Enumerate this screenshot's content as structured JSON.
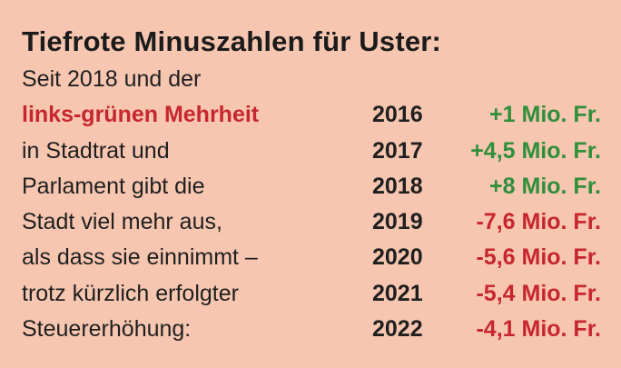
{
  "title": "Tiefrote Minuszahlen für Uster:",
  "rows": [
    {
      "text": "Seit 2018 und der",
      "year": "",
      "amount": ""
    },
    {
      "text": "links-grünen Mehrheit",
      "year": "2016",
      "amount": "+1 Mio. Fr."
    },
    {
      "text": "in Stadtrat und",
      "year": "2017",
      "amount": "+4,5 Mio. Fr."
    },
    {
      "text": "Parlament gibt die",
      "year": "2018",
      "amount": "+8 Mio. Fr."
    },
    {
      "text": "Stadt viel mehr aus,",
      "year": "2019",
      "amount": "-7,6 Mio. Fr."
    },
    {
      "text": "als dass sie einnimmt –",
      "year": "2020",
      "amount": "-5,6 Mio. Fr."
    },
    {
      "text": "trotz kürzlich erfolgter",
      "year": "2021",
      "amount": "-5,4 Mio. Fr."
    },
    {
      "text": "Steuererhöhung:",
      "year": "2022",
      "amount": "-4,1 Mio. Fr."
    }
  ],
  "colors": {
    "background": "#f7c6b1",
    "text": "#1f1f1f",
    "highlight_red": "#c6262e",
    "positive_green": "#2f8f3a",
    "negative_red": "#c6262e"
  }
}
